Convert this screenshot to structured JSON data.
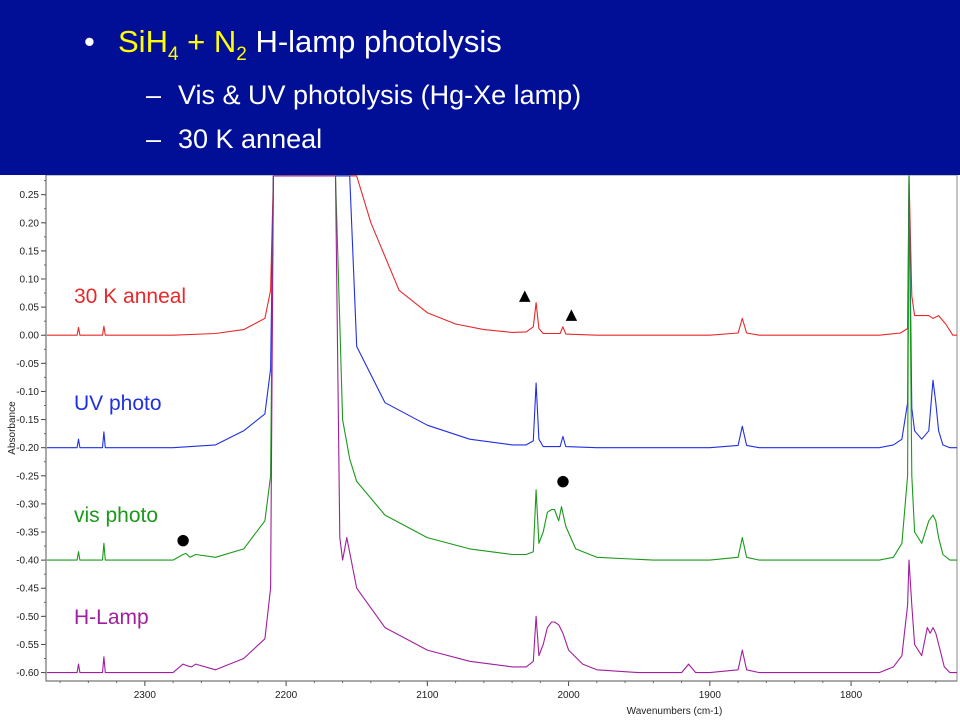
{
  "header": {
    "bullet": "•",
    "title_parts": [
      {
        "text": "SiH",
        "style": "yellow"
      },
      {
        "text": "4",
        "style": "yellow-sub"
      },
      {
        "text": " + N",
        "style": "yellow"
      },
      {
        "text": "2",
        "style": "yellow-sub"
      },
      {
        "text": " H-lamp photolysis",
        "style": "white"
      }
    ],
    "sub_dash": "–",
    "subitems": [
      "Vis & UV photolysis (Hg-Xe lamp)",
      "30 K anneal"
    ]
  },
  "colors": {
    "header_bg": "#000f96",
    "accent_yellow": "#ffff00",
    "anneal": "#e8282a",
    "uv": "#2030e0",
    "vis": "#1a9a1a",
    "hlamp": "#a01f9e"
  },
  "chart_data": {
    "type": "line",
    "xlabel": "Wavenumbers (cm-1)",
    "ylabel": "Absorbance",
    "xlim": [
      2370,
      1725
    ],
    "x_reversed": true,
    "x_ticks": [
      2300,
      2200,
      2100,
      2000,
      1900,
      1800
    ],
    "ylim": [
      -0.615,
      0.285
    ],
    "y_ticks": [
      0.25,
      0.2,
      0.15,
      0.1,
      0.05,
      0.0,
      -0.05,
      -0.1,
      -0.15,
      -0.2,
      -0.25,
      -0.3,
      -0.35,
      -0.4,
      -0.45,
      -0.5,
      -0.55,
      -0.6
    ],
    "y_tick_labels": [
      "0.25",
      "0.20",
      "0.15",
      "0.10",
      "0.05",
      "0.00",
      "-0.05",
      "-0.10",
      "-0.15",
      "-0.20",
      "-0.25",
      "-0.30",
      "-0.35",
      "-0.40",
      "-0.45",
      "-0.50",
      "-0.55",
      "-0.60"
    ],
    "grid": false,
    "series": [
      {
        "name": "30 K anneal",
        "color": "#e8282a",
        "baseline": 0.0,
        "x": [
          2370,
          2348,
          2347,
          2346,
          2330,
          2329,
          2328,
          2310,
          2280,
          2250,
          2230,
          2215,
          2211,
          2209,
          2207,
          2200,
          2190,
          2180,
          2160,
          2150,
          2140,
          2120,
          2100,
          2080,
          2060,
          2040,
          2030,
          2025,
          2023,
          2021,
          2018,
          2006,
          2004,
          2002,
          1980,
          1940,
          1900,
          1880,
          1877,
          1874,
          1865,
          1820,
          1780,
          1765,
          1760,
          1759,
          1757,
          1755,
          1750,
          1745,
          1742,
          1738,
          1733,
          1728,
          1725
        ],
        "y": [
          0.0,
          0.0,
          0.014,
          0.0,
          0.0,
          0.016,
          0.0,
          0.0,
          0.0,
          0.003,
          0.01,
          0.03,
          0.08,
          0.3,
          0.3,
          0.3,
          0.3,
          0.3,
          0.3,
          0.29,
          0.2,
          0.08,
          0.04,
          0.02,
          0.01,
          0.005,
          0.006,
          0.015,
          0.058,
          0.012,
          0.003,
          0.003,
          0.015,
          0.002,
          0.0,
          0.0,
          0.0,
          0.004,
          0.03,
          0.004,
          0.0,
          0.0,
          0.0,
          0.004,
          0.012,
          0.3,
          0.07,
          0.035,
          0.035,
          0.035,
          0.03,
          0.035,
          0.02,
          0.0,
          0.0
        ]
      },
      {
        "name": "UV photo",
        "color": "#2030e0",
        "baseline": -0.2,
        "x": [
          2370,
          2348,
          2347,
          2346,
          2330,
          2329,
          2328,
          2310,
          2280,
          2250,
          2230,
          2215,
          2211,
          2209,
          2200,
          2190,
          2180,
          2170,
          2160,
          2155,
          2150,
          2130,
          2100,
          2070,
          2040,
          2030,
          2025,
          2023,
          2021,
          2018,
          2006,
          2004,
          2002,
          1980,
          1940,
          1900,
          1880,
          1877,
          1874,
          1865,
          1820,
          1780,
          1770,
          1764,
          1760,
          1759,
          1757,
          1755,
          1750,
          1745,
          1742,
          1740,
          1738,
          1735,
          1730,
          1725
        ],
        "y": [
          -0.2,
          -0.2,
          -0.185,
          -0.2,
          -0.2,
          -0.172,
          -0.2,
          -0.2,
          -0.2,
          -0.195,
          -0.17,
          -0.14,
          -0.06,
          0.3,
          0.3,
          0.3,
          0.3,
          0.3,
          0.3,
          0.3,
          -0.02,
          -0.12,
          -0.16,
          -0.185,
          -0.195,
          -0.195,
          -0.188,
          -0.085,
          -0.185,
          -0.198,
          -0.198,
          -0.18,
          -0.198,
          -0.2,
          -0.2,
          -0.2,
          -0.196,
          -0.162,
          -0.196,
          -0.2,
          -0.2,
          -0.2,
          -0.195,
          -0.185,
          -0.12,
          0.3,
          -0.13,
          -0.17,
          -0.185,
          -0.17,
          -0.08,
          -0.12,
          -0.17,
          -0.195,
          -0.2,
          -0.2
        ]
      },
      {
        "name": "vis photo",
        "color": "#1a9a1a",
        "baseline": -0.4,
        "x": [
          2370,
          2348,
          2347,
          2346,
          2330,
          2329,
          2328,
          2310,
          2280,
          2273,
          2271,
          2268,
          2264,
          2250,
          2230,
          2215,
          2211,
          2209,
          2200,
          2190,
          2180,
          2170,
          2165,
          2160,
          2155,
          2150,
          2130,
          2100,
          2070,
          2040,
          2030,
          2025,
          2023,
          2021,
          2018,
          2015,
          2012,
          2010,
          2007,
          2005,
          2002,
          1995,
          1980,
          1940,
          1900,
          1880,
          1877,
          1874,
          1865,
          1820,
          1780,
          1770,
          1764,
          1760,
          1759,
          1757,
          1755,
          1750,
          1745,
          1742,
          1740,
          1738,
          1735,
          1730,
          1725
        ],
        "y": [
          -0.4,
          -0.4,
          -0.385,
          -0.4,
          -0.4,
          -0.37,
          -0.4,
          -0.4,
          -0.4,
          -0.39,
          -0.388,
          -0.395,
          -0.39,
          -0.395,
          -0.38,
          -0.33,
          -0.25,
          0.3,
          0.3,
          0.3,
          0.3,
          0.3,
          0.3,
          -0.15,
          -0.22,
          -0.26,
          -0.32,
          -0.36,
          -0.38,
          -0.39,
          -0.39,
          -0.385,
          -0.275,
          -0.37,
          -0.35,
          -0.315,
          -0.31,
          -0.31,
          -0.33,
          -0.305,
          -0.34,
          -0.38,
          -0.395,
          -0.4,
          -0.4,
          -0.395,
          -0.36,
          -0.395,
          -0.4,
          -0.4,
          -0.4,
          -0.395,
          -0.37,
          -0.25,
          0.3,
          -0.25,
          -0.35,
          -0.37,
          -0.33,
          -0.32,
          -0.33,
          -0.36,
          -0.39,
          -0.4,
          -0.4
        ]
      },
      {
        "name": "H-Lamp",
        "color": "#a01f9e",
        "baseline": -0.6,
        "x": [
          2370,
          2348,
          2347,
          2346,
          2330,
          2329,
          2328,
          2310,
          2280,
          2273,
          2270,
          2267,
          2264,
          2250,
          2230,
          2215,
          2211,
          2209,
          2200,
          2190,
          2180,
          2170,
          2165,
          2162,
          2160,
          2157,
          2150,
          2130,
          2100,
          2070,
          2040,
          2030,
          2025,
          2023,
          2021,
          2018,
          2015,
          2012,
          2010,
          2007,
          2004,
          2000,
          1990,
          1980,
          1950,
          1920,
          1915,
          1910,
          1900,
          1880,
          1877,
          1874,
          1865,
          1820,
          1780,
          1770,
          1764,
          1760,
          1759,
          1757,
          1755,
          1750,
          1746,
          1744,
          1742,
          1740,
          1737,
          1734,
          1730,
          1725
        ],
        "y": [
          -0.6,
          -0.6,
          -0.585,
          -0.6,
          -0.6,
          -0.572,
          -0.6,
          -0.6,
          -0.6,
          -0.585,
          -0.588,
          -0.59,
          -0.585,
          -0.595,
          -0.575,
          -0.54,
          -0.45,
          0.3,
          0.3,
          0.3,
          0.3,
          0.3,
          0.3,
          -0.36,
          -0.4,
          -0.36,
          -0.45,
          -0.52,
          -0.56,
          -0.58,
          -0.59,
          -0.59,
          -0.58,
          -0.5,
          -0.57,
          -0.55,
          -0.52,
          -0.51,
          -0.51,
          -0.515,
          -0.53,
          -0.56,
          -0.585,
          -0.595,
          -0.6,
          -0.6,
          -0.585,
          -0.6,
          -0.6,
          -0.595,
          -0.56,
          -0.595,
          -0.6,
          -0.6,
          -0.6,
          -0.59,
          -0.57,
          -0.48,
          -0.4,
          -0.48,
          -0.55,
          -0.57,
          -0.52,
          -0.53,
          -0.52,
          -0.53,
          -0.56,
          -0.59,
          -0.6,
          -0.6
        ]
      }
    ],
    "labels": [
      {
        "text": "30 K anneal",
        "series": 0
      },
      {
        "text": "UV photo",
        "series": 1
      },
      {
        "text": "vis photo",
        "series": 2
      },
      {
        "text": "H-Lamp",
        "series": 3
      }
    ],
    "markers": [
      {
        "symbol": "▲",
        "x": 2031,
        "y": 0.063
      },
      {
        "symbol": "▲",
        "x": 1998,
        "y": 0.029
      },
      {
        "symbol": "●",
        "x": 2004,
        "y": -0.267
      },
      {
        "symbol": "●",
        "x": 2273,
        "y": -0.372
      }
    ]
  }
}
